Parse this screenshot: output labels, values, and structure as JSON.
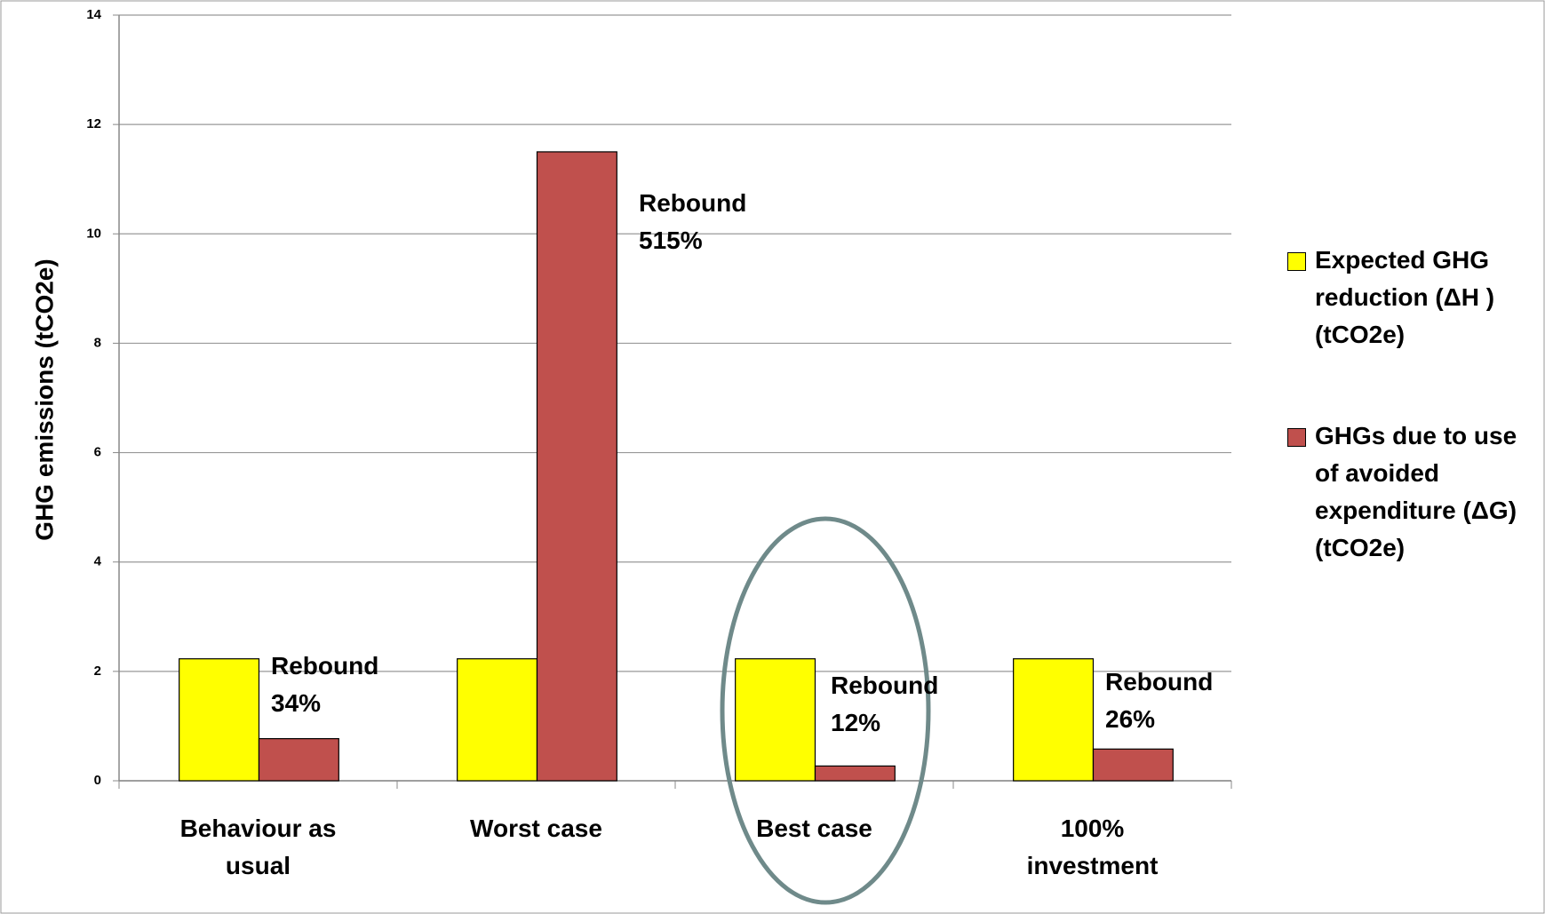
{
  "chart_data": {
    "type": "bar",
    "y_label": "GHG emissions  (tCO2e)",
    "categories": [
      "Behaviour as usual",
      "Worst case",
      "Best case",
      "100% investment"
    ],
    "series": [
      {
        "name": "Expected GHG reduction (ΔH ) (tCO2e)",
        "color": "#ffff00",
        "values": [
          2.23,
          2.23,
          2.23,
          2.23
        ]
      },
      {
        "name": "GHGs due to use of avoided expenditure (ΔG) (tCO2e)",
        "color": "#c0504d",
        "values": [
          0.77,
          11.5,
          0.27,
          0.58
        ]
      }
    ],
    "annotations": [
      "Rebound 34%",
      "Rebound 515%",
      "Rebound 12%",
      "Rebound 26%"
    ],
    "ylim": [
      0,
      14
    ],
    "yticks": [
      0,
      2,
      4,
      6,
      8,
      10,
      12,
      14
    ],
    "grid": true,
    "legend": "right"
  }
}
